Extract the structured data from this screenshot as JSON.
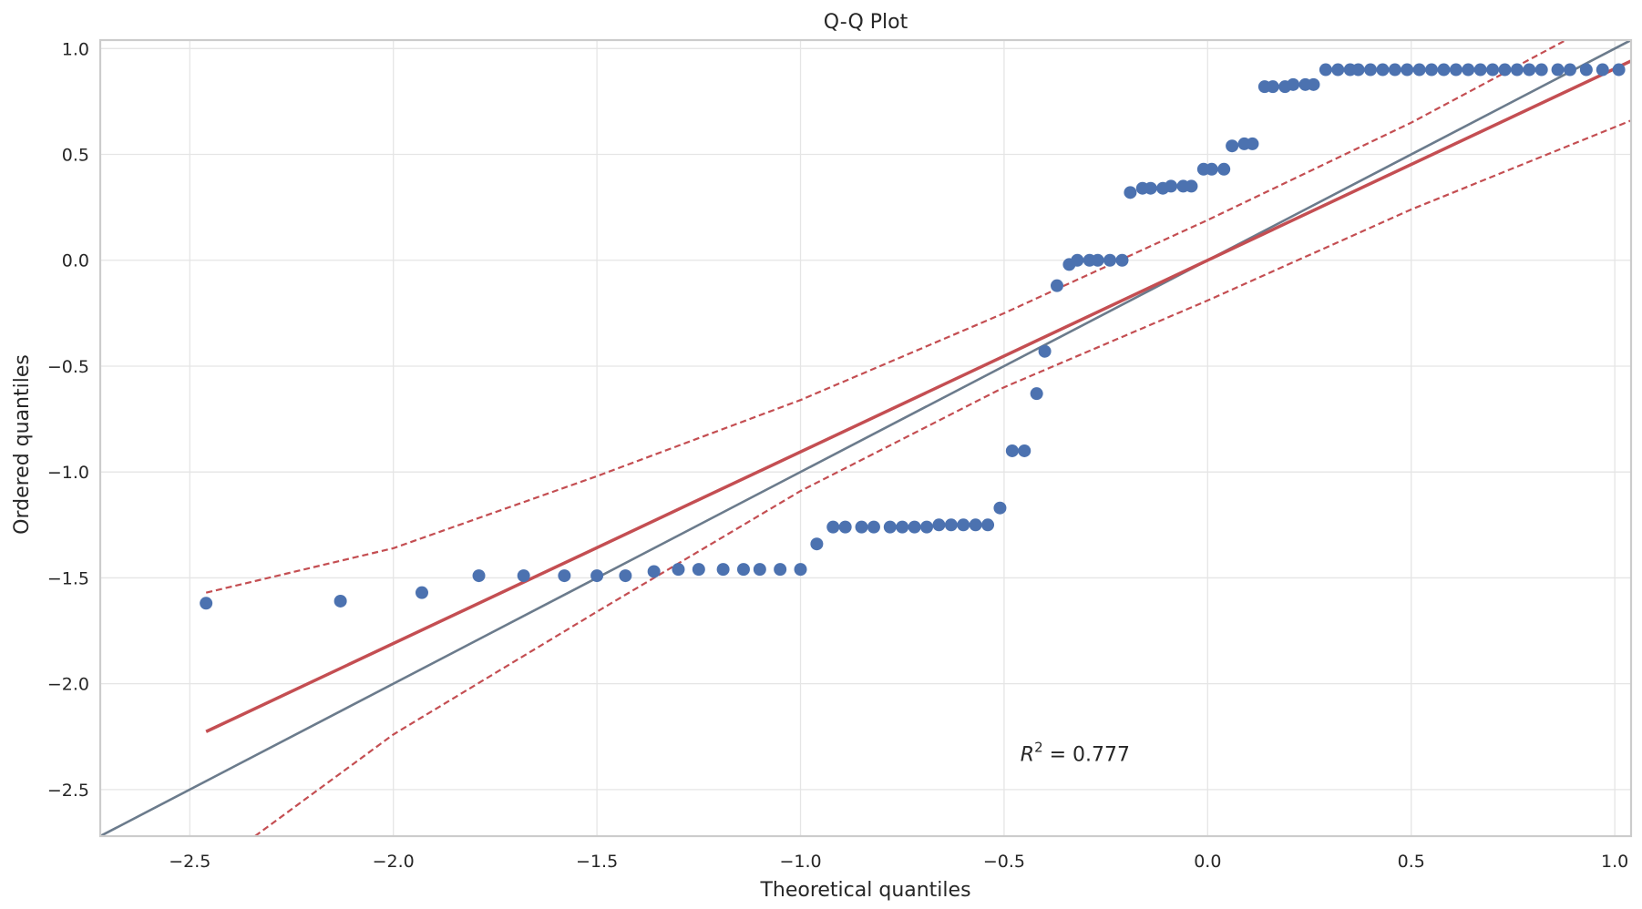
{
  "chart_data": {
    "type": "scatter",
    "title": "Q-Q Plot",
    "xlabel": "Theoretical quantiles",
    "ylabel": "Ordered quantiles",
    "xlim": [
      -2.72,
      1.04
    ],
    "ylim": [
      -2.72,
      1.04
    ],
    "xticks": [
      -2.5,
      -2.0,
      -1.5,
      -1.0,
      -0.5,
      0.0,
      0.5,
      1.0
    ],
    "yticks": [
      -2.5,
      -2.0,
      -1.5,
      -1.0,
      -0.5,
      0.0,
      0.5,
      1.0
    ],
    "xtick_labels": [
      "−2.5",
      "−2.0",
      "−1.5",
      "−1.0",
      "−0.5",
      "0.0",
      "0.5",
      "1.0"
    ],
    "ytick_labels": [
      "−2.5",
      "−2.0",
      "−1.5",
      "−1.0",
      "−0.5",
      "0.0",
      "0.5",
      "1.0"
    ],
    "grid": true,
    "annotation": {
      "prefix": "R",
      "exponent": "2",
      "suffix": " = 0.777",
      "x": -0.46,
      "y": -2.33
    },
    "colors": {
      "points": "#4c72b0",
      "fit_line": "#c44e52",
      "reference_line": "#6b7b8c",
      "grid": "#e5e5e5",
      "axes": "#cccccc"
    },
    "points": [
      [
        -2.46,
        -1.62
      ],
      [
        -2.13,
        -1.61
      ],
      [
        -1.93,
        -1.57
      ],
      [
        -1.79,
        -1.49
      ],
      [
        -1.68,
        -1.49
      ],
      [
        -1.58,
        -1.49
      ],
      [
        -1.5,
        -1.49
      ],
      [
        -1.43,
        -1.49
      ],
      [
        -1.36,
        -1.47
      ],
      [
        -1.3,
        -1.46
      ],
      [
        -1.25,
        -1.46
      ],
      [
        -1.19,
        -1.46
      ],
      [
        -1.14,
        -1.46
      ],
      [
        -1.1,
        -1.46
      ],
      [
        -1.05,
        -1.46
      ],
      [
        -1.0,
        -1.46
      ],
      [
        -0.96,
        -1.34
      ],
      [
        -0.92,
        -1.26
      ],
      [
        -0.89,
        -1.26
      ],
      [
        -0.85,
        -1.26
      ],
      [
        -0.82,
        -1.26
      ],
      [
        -0.78,
        -1.26
      ],
      [
        -0.75,
        -1.26
      ],
      [
        -0.72,
        -1.26
      ],
      [
        -0.69,
        -1.26
      ],
      [
        -0.66,
        -1.25
      ],
      [
        -0.63,
        -1.25
      ],
      [
        -0.6,
        -1.25
      ],
      [
        -0.57,
        -1.25
      ],
      [
        -0.54,
        -1.25
      ],
      [
        -0.51,
        -1.17
      ],
      [
        -0.48,
        -0.9
      ],
      [
        -0.45,
        -0.9
      ],
      [
        -0.42,
        -0.63
      ],
      [
        -0.4,
        -0.43
      ],
      [
        -0.37,
        -0.12
      ],
      [
        -0.34,
        -0.02
      ],
      [
        -0.32,
        0.0
      ],
      [
        -0.29,
        0.0
      ],
      [
        -0.27,
        0.0
      ],
      [
        -0.24,
        0.0
      ],
      [
        -0.21,
        0.0
      ],
      [
        -0.19,
        0.32
      ],
      [
        -0.16,
        0.34
      ],
      [
        -0.14,
        0.34
      ],
      [
        -0.11,
        0.34
      ],
      [
        -0.09,
        0.35
      ],
      [
        -0.06,
        0.35
      ],
      [
        -0.04,
        0.35
      ],
      [
        -0.01,
        0.43
      ],
      [
        0.01,
        0.43
      ],
      [
        0.04,
        0.43
      ],
      [
        0.06,
        0.54
      ],
      [
        0.09,
        0.55
      ],
      [
        0.11,
        0.55
      ],
      [
        0.14,
        0.82
      ],
      [
        0.16,
        0.82
      ],
      [
        0.19,
        0.82
      ],
      [
        0.21,
        0.83
      ],
      [
        0.24,
        0.83
      ],
      [
        0.26,
        0.83
      ],
      [
        0.29,
        0.9
      ],
      [
        0.32,
        0.9
      ],
      [
        0.35,
        0.9
      ],
      [
        0.37,
        0.9
      ],
      [
        0.4,
        0.9
      ],
      [
        0.43,
        0.9
      ],
      [
        0.46,
        0.9
      ],
      [
        0.49,
        0.9
      ],
      [
        0.52,
        0.9
      ],
      [
        0.55,
        0.9
      ],
      [
        0.58,
        0.9
      ],
      [
        0.61,
        0.9
      ],
      [
        0.64,
        0.9
      ],
      [
        0.67,
        0.9
      ],
      [
        0.7,
        0.9
      ],
      [
        0.73,
        0.9
      ],
      [
        0.76,
        0.9
      ],
      [
        0.79,
        0.9
      ],
      [
        0.82,
        0.9
      ],
      [
        0.86,
        0.9
      ],
      [
        0.89,
        0.9
      ],
      [
        0.93,
        0.9
      ],
      [
        0.97,
        0.9
      ],
      [
        1.01,
        0.9
      ]
    ],
    "fit_line": {
      "slope": 0.905,
      "intercept": 0.0,
      "x_start": -2.46,
      "x_end": 1.04
    },
    "reference_line": {
      "slope": 1.0,
      "intercept": 0.0
    },
    "confidence_band": {
      "upper": [
        [
          -2.46,
          -1.57
        ],
        [
          -2.0,
          -1.36
        ],
        [
          -1.5,
          -1.02
        ],
        [
          -1.0,
          -0.66
        ],
        [
          -0.5,
          -0.25
        ],
        [
          0.0,
          0.19
        ],
        [
          0.5,
          0.65
        ],
        [
          0.88,
          1.04
        ]
      ],
      "lower": [
        [
          -2.34,
          -2.72
        ],
        [
          -2.0,
          -2.24
        ],
        [
          -1.5,
          -1.66
        ],
        [
          -1.0,
          -1.09
        ],
        [
          -0.5,
          -0.6
        ],
        [
          0.0,
          -0.19
        ],
        [
          0.5,
          0.24
        ],
        [
          1.04,
          0.66
        ]
      ]
    }
  }
}
